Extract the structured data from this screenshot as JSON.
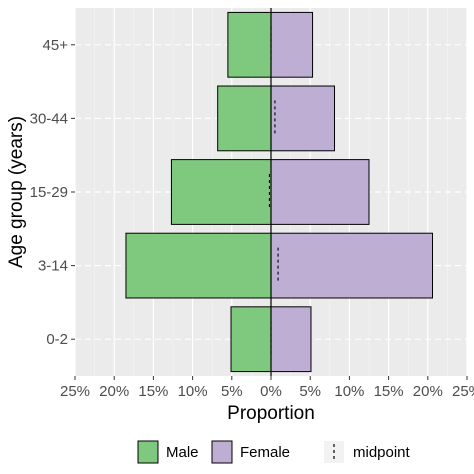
{
  "chart_data": {
    "type": "bar",
    "orientation": "horizontal",
    "layout": "population-pyramid",
    "xlabel": "Proportion",
    "ylabel": "Age group (years)",
    "categories": [
      "0-2",
      "3-14",
      "15-29",
      "30-44",
      "45+"
    ],
    "x_ticks": [
      -25,
      -20,
      -15,
      -10,
      -5,
      0,
      5,
      10,
      15,
      20,
      25
    ],
    "x_tick_labels": [
      "25%",
      "20%",
      "15%",
      "10%",
      "5%",
      "0%",
      "5%",
      "10%",
      "15%",
      "20%",
      "25%"
    ],
    "xlim": [
      -25,
      25
    ],
    "unit": "percent",
    "series": [
      {
        "name": "Male",
        "side": "left",
        "color": "#7fc97f",
        "values": [
          5.1,
          18.5,
          12.7,
          6.8,
          5.5
        ]
      },
      {
        "name": "Female",
        "side": "right",
        "color": "#beaed4",
        "values": [
          5.1,
          20.6,
          12.5,
          8.1,
          5.3
        ]
      }
    ],
    "midpoint": {
      "name": "midpoint",
      "values": [
        0.0,
        0.9,
        -0.2,
        0.5,
        0.0
      ]
    },
    "grid": true,
    "panel_background": "#ebebeb",
    "legend_position": "bottom"
  }
}
